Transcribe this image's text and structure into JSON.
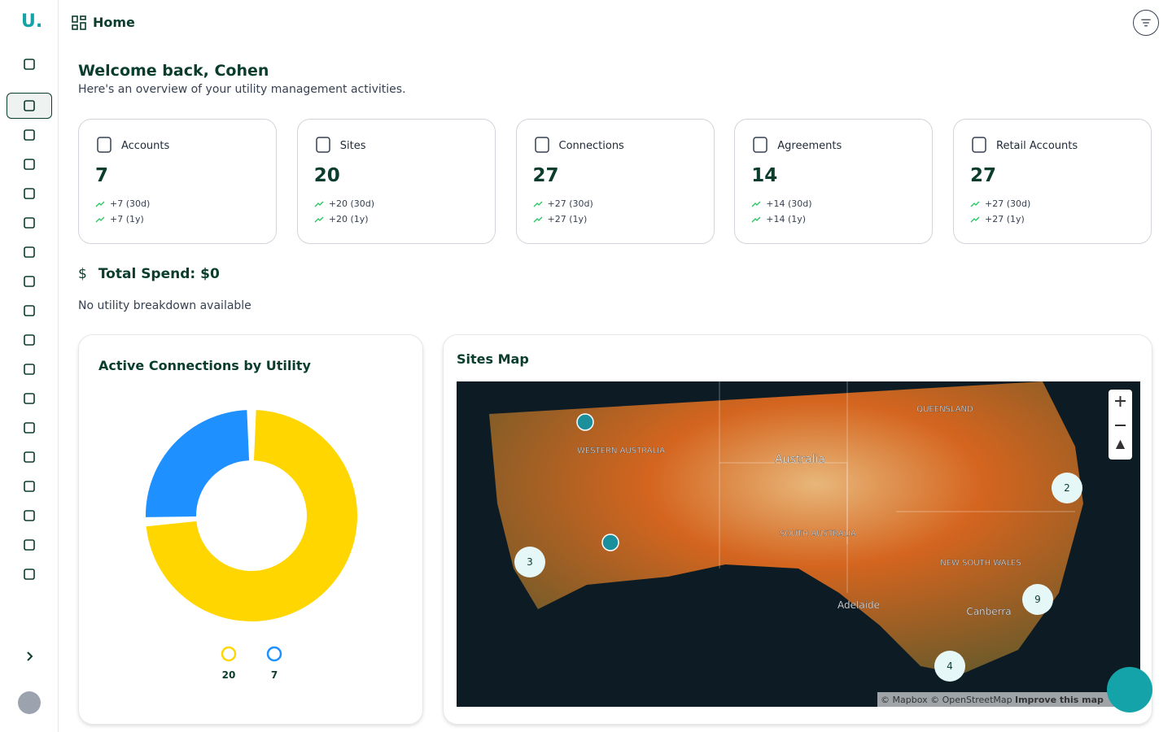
{
  "sidebar": {
    "logo": "U."
  },
  "header": {
    "title": "Home"
  },
  "welcome": {
    "title": "Welcome back, Cohen",
    "subtitle": "Here's an overview of your utility management activities."
  },
  "stats": [
    {
      "label": "Accounts",
      "value": 7,
      "change_30d": "+7 (30d)",
      "change_1y": "+7 (1y)"
    },
    {
      "label": "Sites",
      "value": 20,
      "change_30d": "+20 (30d)",
      "change_1y": "+20 (1y)"
    },
    {
      "label": "Connections",
      "value": 27,
      "change_30d": "+27 (30d)",
      "change_1y": "+27 (1y)"
    },
    {
      "label": "Agreements",
      "value": 14,
      "change_30d": "+14 (30d)",
      "change_1y": "+14 (1y)"
    },
    {
      "label": "Retail Accounts",
      "value": 27,
      "change_30d": "+27 (30d)",
      "change_1y": "+27 (1y)"
    }
  ],
  "spend": {
    "title": "Total Spend: $0",
    "note": "No utility breakdown available"
  },
  "chart_data": {
    "type": "pie",
    "title": "Active Connections by Utility",
    "values": [
      20,
      7
    ],
    "colors": [
      "#ffd600",
      "#1e90ff"
    ]
  },
  "map": {
    "title": "Sites Map",
    "labels": [
      "WESTERN AUSTRALIA",
      "Australia",
      "SOUTH AUSTRALIA",
      "QUEENSLAND",
      "NEW SOUTH WALES",
      "Adelaide",
      "Canberra"
    ],
    "clusters": [
      2,
      3,
      9,
      4
    ],
    "attribution": "© Mapbox © OpenStreetMap",
    "improve": "Improve this map"
  }
}
